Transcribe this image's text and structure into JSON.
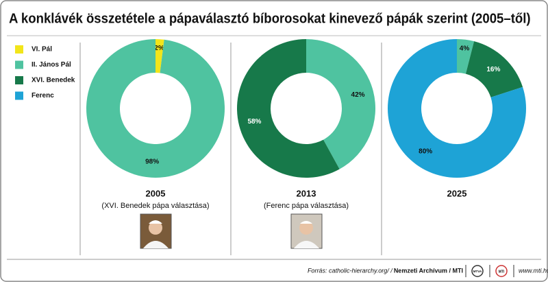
{
  "title": "A konklávék összetétele a pápaválasztó bíborosokat kinevező pápák szerint (2005–től)",
  "legend": {
    "names": [
      "VI. Pál",
      "II. János Pál",
      "XVI. Benedek",
      "Ferenc"
    ],
    "colors": [
      "#f2e51a",
      "#4fc3a0",
      "#17794a",
      "#1ea3d6"
    ]
  },
  "chart_data": [
    {
      "type": "pie",
      "title": "2005",
      "subtitle": "(XVI. Benedek pápa választása)",
      "values": [
        2,
        98,
        null,
        null
      ],
      "value_labels": [
        "2%",
        "98%",
        null,
        null
      ]
    },
    {
      "type": "pie",
      "title": "2013",
      "subtitle": "(Ferenc pápa választása)",
      "values": [
        null,
        42,
        58,
        null
      ],
      "value_labels": [
        null,
        "42%",
        "58%",
        null
      ]
    },
    {
      "type": "pie",
      "title": "2025",
      "values": [
        null,
        4,
        16,
        80
      ],
      "value_labels": [
        null,
        "4%",
        "16%",
        "80%"
      ]
    }
  ],
  "footer": {
    "source": "Forrás: catholic-hierarchy.org/ / ",
    "source_bold": "Nemzeti Archívum / MTI",
    "logos": [
      "MTVA",
      "MTI"
    ],
    "url": "www.mti.hu"
  }
}
